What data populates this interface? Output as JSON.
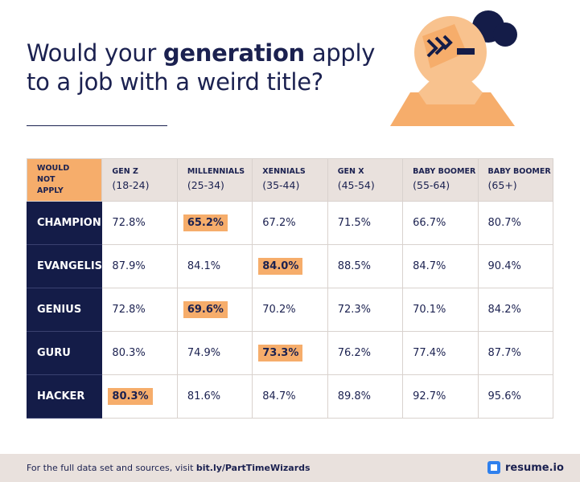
{
  "header": {
    "title_line1": [
      "Would your ",
      "generation",
      " apply"
    ],
    "title_line2": "to a job with a weird title?"
  },
  "table": {
    "corner": "WOULD NOT APPLY",
    "columns": [
      {
        "name": "GEN Z",
        "range": "(18-24)"
      },
      {
        "name": "MILLENNIALS",
        "range": "(25-34)"
      },
      {
        "name": "XENNIALS",
        "range": "(35-44)"
      },
      {
        "name": "GEN X",
        "range": "(45-54)"
      },
      {
        "name": "BABY BOOMER",
        "range": "(55-64)"
      },
      {
        "name": "BABY BOOMER",
        "range": "(65+)"
      }
    ],
    "rows": [
      {
        "label": "CHAMPION",
        "values": [
          "72.8%",
          "65.2%",
          "67.2%",
          "71.5%",
          "66.7%",
          "80.7%"
        ],
        "highlight": 1
      },
      {
        "label": "EVANGELIST",
        "values": [
          "87.9%",
          "84.1%",
          "84.0%",
          "88.5%",
          "84.7%",
          "90.4%"
        ],
        "highlight": 2
      },
      {
        "label": "GENIUS",
        "values": [
          "72.8%",
          "69.6%",
          "70.2%",
          "72.3%",
          "70.1%",
          "84.2%"
        ],
        "highlight": 1
      },
      {
        "label": "GURU",
        "values": [
          "80.3%",
          "74.9%",
          "73.3%",
          "76.2%",
          "77.4%",
          "87.7%"
        ],
        "highlight": 2
      },
      {
        "label": "HACKER",
        "values": [
          "80.3%",
          "81.6%",
          "84.7%",
          "89.8%",
          "92.7%",
          "95.6%"
        ],
        "highlight": 0
      }
    ]
  },
  "footer": {
    "note": "For the full data set and sources, visit ",
    "link": "bit.ly/PartTimeWizards",
    "logo": "resume.io"
  }
}
